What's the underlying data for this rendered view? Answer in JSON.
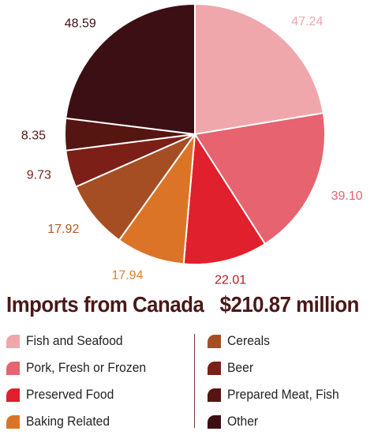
{
  "chart_data": {
    "type": "pie",
    "title": "Imports from Canada",
    "total_label": "$210.87 million",
    "slices": [
      {
        "name": "Fish and Seafood",
        "value": 47.24,
        "label": "47.24",
        "color": "#f0a7ab",
        "label_color": "#f0a7ab"
      },
      {
        "name": "Pork, Fresh or Frozen",
        "value": 39.1,
        "label": "39.10",
        "color": "#e6636f",
        "label_color": "#e6636f"
      },
      {
        "name": "Preserved Food",
        "value": 22.01,
        "label": "22.01",
        "color": "#e0202c",
        "label_color": "#b01a22"
      },
      {
        "name": "Baking Related",
        "value": 17.94,
        "label": "17.94",
        "color": "#dc7427",
        "label_color": "#d9822f"
      },
      {
        "name": "Cereals",
        "value": 17.92,
        "label": "17.92",
        "color": "#a64e23",
        "label_color": "#b05a2a"
      },
      {
        "name": "Beer",
        "value": 9.73,
        "label": "9.73",
        "color": "#7c1f17",
        "label_color": "#7c1f17"
      },
      {
        "name": "Prepared Meat, Fish",
        "value": 8.35,
        "label": "8.35",
        "color": "#551511",
        "label_color": "#551511"
      },
      {
        "name": "Other",
        "value": 48.59,
        "label": "48.59",
        "color": "#3c0f14",
        "label_color": "#3c0f14"
      }
    ],
    "start_angle": "12 o'clock",
    "direction": "clockwise",
    "legend_placement": "bottom, two columns"
  },
  "legend": {
    "left": [
      {
        "label": "Fish and Seafood",
        "color": "#f0a7ab"
      },
      {
        "label": "Pork, Fresh or Frozen",
        "color": "#e6636f"
      },
      {
        "label": "Preserved Food",
        "color": "#e0202c"
      },
      {
        "label": "Baking Related",
        "color": "#dc7427"
      }
    ],
    "right": [
      {
        "label": "Cereals",
        "color": "#a64e23"
      },
      {
        "label": "Beer",
        "color": "#7c1f17"
      },
      {
        "label": "Prepared Meat, Fish",
        "color": "#551511"
      },
      {
        "label": "Other",
        "color": "#3c0f14"
      }
    ]
  }
}
